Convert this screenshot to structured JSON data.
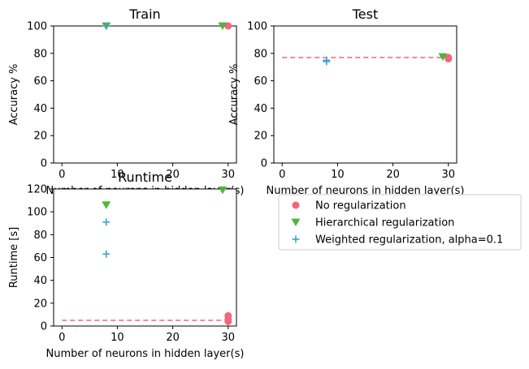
{
  "chart_data": [
    {
      "type": "scatter",
      "title": "Train",
      "xlabel": "Number of neurons in hidden layer(s)",
      "ylabel": "Accuracy %",
      "xlim": [
        -1.5,
        31.5
      ],
      "ylim": [
        0,
        100
      ],
      "xticks": [
        0,
        10,
        20,
        30
      ],
      "yticks": [
        0,
        20,
        40,
        60,
        80,
        100
      ],
      "series": [
        {
          "key": "none",
          "points": [
            {
              "x": 30,
              "y": 100
            }
          ]
        },
        {
          "key": "hier",
          "points": [
            {
              "x": 8,
              "y": 100
            },
            {
              "x": 29,
              "y": 100
            }
          ]
        },
        {
          "key": "weighted",
          "points": [
            {
              "x": 8,
              "y": 100
            }
          ]
        }
      ],
      "reference_line": null
    },
    {
      "type": "scatter",
      "title": "Test",
      "xlabel": "Number of neurons in hidden layer(s)",
      "ylabel": "Accuracy %",
      "xlim": [
        -1.5,
        31.5
      ],
      "ylim": [
        0,
        100
      ],
      "xticks": [
        0,
        10,
        20,
        30
      ],
      "yticks": [
        0,
        20,
        40,
        60,
        80,
        100
      ],
      "series": [
        {
          "key": "none",
          "points": [
            {
              "x": 30,
              "y": 77
            },
            {
              "x": 30,
              "y": 76
            }
          ]
        },
        {
          "key": "hier",
          "points": [
            {
              "x": 29,
              "y": 77.5
            }
          ]
        },
        {
          "key": "weighted",
          "points": [
            {
              "x": 8,
              "y": 75
            },
            {
              "x": 8,
              "y": 74
            }
          ]
        }
      ],
      "reference_line": {
        "y": 77,
        "x_from": 0,
        "x_to": 30,
        "color": "#f2667c"
      }
    },
    {
      "type": "scatter",
      "title": "Runtime",
      "xlabel": "Number of neurons in hidden layer(s)",
      "ylabel": "Runtime [s]",
      "xlim": [
        -1.5,
        31.5
      ],
      "ylim": [
        0,
        120
      ],
      "xticks": [
        0,
        10,
        20,
        30
      ],
      "yticks": [
        0,
        20,
        40,
        60,
        80,
        100,
        120
      ],
      "series": [
        {
          "key": "none",
          "points": [
            {
              "x": 30,
              "y": 9
            },
            {
              "x": 30,
              "y": 6
            },
            {
              "x": 30,
              "y": 4
            }
          ]
        },
        {
          "key": "hier",
          "points": [
            {
              "x": 8,
              "y": 106
            },
            {
              "x": 29,
              "y": 119
            }
          ]
        },
        {
          "key": "weighted",
          "points": [
            {
              "x": 8,
              "y": 91
            },
            {
              "x": 8,
              "y": 63
            }
          ]
        }
      ],
      "reference_line": {
        "y": 5,
        "x_from": 0,
        "x_to": 30,
        "color": "#f2667c"
      }
    }
  ],
  "legend": {
    "entries": [
      {
        "key": "none",
        "label": "No regularization",
        "marker": "circle",
        "color": "#f2667c"
      },
      {
        "key": "hier",
        "label": "Hierarchical regularization",
        "marker": "triangle-down",
        "color": "#4fb436"
      },
      {
        "key": "weighted",
        "label": "Weighted regularization, alpha=0.1",
        "marker": "plus",
        "color": "#3ba3d0"
      }
    ]
  }
}
